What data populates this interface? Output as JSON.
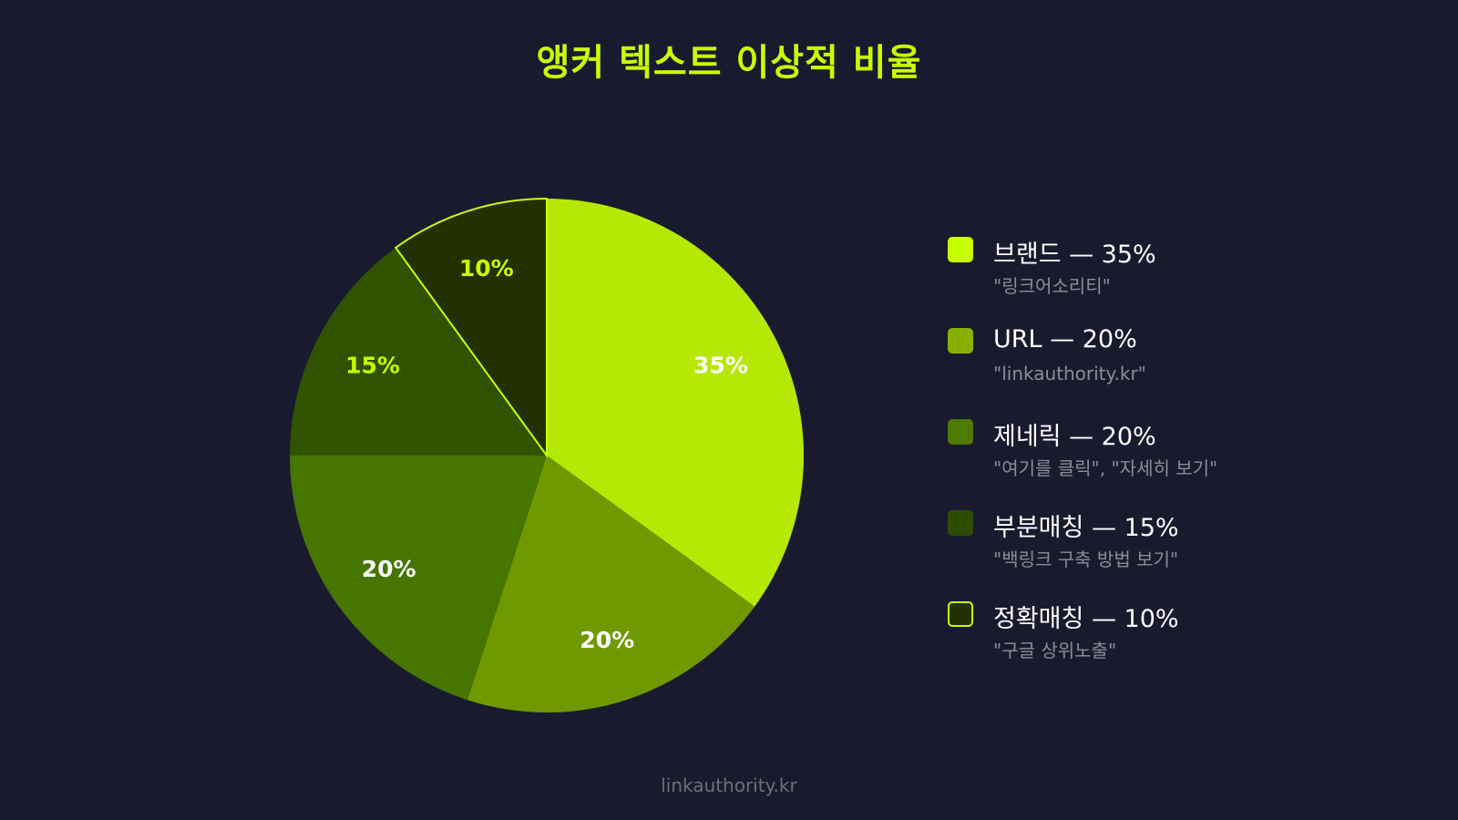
{
  "title": "앵커 텍스트 이상적 비율",
  "footer": "linkauthority.kr",
  "colors": {
    "background": "#1a1a2e",
    "accent": "#c8ff00"
  },
  "chart_data": {
    "type": "pie",
    "title": "앵커 텍스트 이상적 비율",
    "legend_position": "right",
    "slices": [
      {
        "name": "브랜드",
        "value": 35,
        "label": "35%",
        "color": "#b5e805",
        "label_color": "#ffffff"
      },
      {
        "name": "URL",
        "value": 20,
        "label": "20%",
        "color": "#6e9a00",
        "label_color": "#ffffff"
      },
      {
        "name": "제네릭",
        "value": 20,
        "label": "20%",
        "color": "#467500",
        "label_color": "#ffffff"
      },
      {
        "name": "부분매칭",
        "value": 15,
        "label": "15%",
        "color": "#305300",
        "label_color": "#c8ff00"
      },
      {
        "name": "정확매칭",
        "value": 10,
        "label": "10%",
        "color": "#233000",
        "label_color": "#c8ff00"
      }
    ]
  },
  "legend": [
    {
      "label": "브랜드 — 35%",
      "example": "\"링크어소리티\"",
      "color": "#c8ff00",
      "outline": false
    },
    {
      "label": "URL — 20%",
      "example": "\"linkauthority.kr\"",
      "color": "#88b000",
      "outline": false
    },
    {
      "label": "제네릭 — 20%",
      "example": "\"여기를 클릭\", \"자세히 보기\"",
      "color": "#4e7a00",
      "outline": false
    },
    {
      "label": "부분매칭 — 15%",
      "example": "\"백링크 구축 방법 보기\"",
      "color": "#2e4d00",
      "outline": false
    },
    {
      "label": "정확매칭 — 10%",
      "example": "\"구글 상위노출\"",
      "color": "#233000",
      "outline": true
    }
  ]
}
